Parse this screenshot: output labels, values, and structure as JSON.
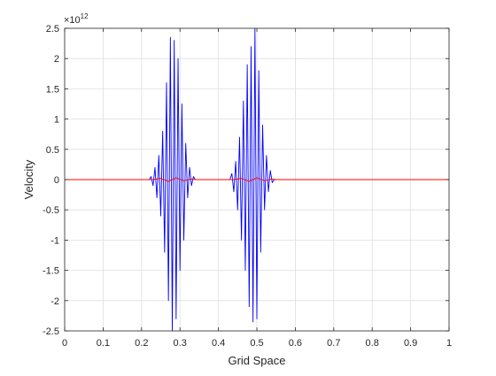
{
  "chart_data": {
    "type": "line",
    "title": "",
    "xlabel": "Grid Space",
    "ylabel": "Velocity",
    "y_exponent_label": "×10",
    "y_exponent_power": "12",
    "y_multiplier": 1000000000000.0,
    "xlim": [
      0,
      1
    ],
    "ylim": [
      -2.5,
      2.5
    ],
    "grid": true,
    "box": true,
    "x_ticks": [
      0,
      0.1,
      0.2,
      0.3,
      0.4,
      0.5,
      0.6,
      0.7,
      0.8,
      0.9,
      1
    ],
    "x_tick_labels": [
      "0",
      "0.1",
      "0.2",
      "0.3",
      "0.4",
      "0.5",
      "0.6",
      "0.7",
      "0.8",
      "0.9",
      "1"
    ],
    "y_ticks": [
      2.5,
      2,
      1.5,
      1,
      0.5,
      0,
      -0.5,
      -1,
      -1.5,
      -2,
      -2.5
    ],
    "y_tick_labels": [
      "2.5",
      "2",
      "1.5",
      "1",
      "0.5",
      "0",
      "-0.5",
      "-1",
      "-1.5",
      "-2",
      "-2.5"
    ],
    "series": [
      {
        "color": "#0000ff",
        "x": [
          0,
          0.22,
          0.225,
          0.23,
          0.235,
          0.24,
          0.245,
          0.25,
          0.255,
          0.26,
          0.265,
          0.27,
          0.275,
          0.28,
          0.285,
          0.29,
          0.295,
          0.3,
          0.305,
          0.31,
          0.315,
          0.32,
          0.325,
          0.33,
          0.335,
          0.34,
          0.43,
          0.435,
          0.44,
          0.445,
          0.45,
          0.455,
          0.46,
          0.465,
          0.47,
          0.475,
          0.48,
          0.485,
          0.49,
          0.495,
          0.5,
          0.505,
          0.51,
          0.515,
          0.52,
          0.525,
          0.53,
          0.535,
          0.54,
          0.545,
          1
        ],
        "y": [
          0,
          0,
          0.05,
          -0.1,
          0.2,
          -0.3,
          0.4,
          -0.6,
          0.8,
          -1.2,
          1.6,
          -2.0,
          2.35,
          -2.5,
          2.3,
          -2.3,
          2.0,
          -1.5,
          1.25,
          -1.0,
          0.6,
          -0.3,
          0.2,
          -0.1,
          0.05,
          0,
          0,
          0.1,
          -0.2,
          0.3,
          -0.5,
          0.7,
          -1.0,
          1.3,
          -1.5,
          1.9,
          -2.1,
          2.2,
          -2.35,
          2.5,
          -2.3,
          1.8,
          -1.2,
          0.9,
          -0.5,
          0.4,
          -0.2,
          0.15,
          -0.05,
          0,
          0
        ]
      },
      {
        "color": "#ff0000",
        "x": [
          0,
          0.23,
          0.25,
          0.27,
          0.29,
          0.31,
          0.33,
          0.34,
          0.44,
          0.46,
          0.48,
          0.5,
          0.52,
          0.54,
          0.55,
          1
        ],
        "y": [
          0,
          0,
          0.02,
          -0.03,
          0.03,
          -0.02,
          0.01,
          0,
          0,
          0.02,
          -0.03,
          0.03,
          -0.02,
          0.01,
          0,
          0
        ]
      }
    ]
  }
}
